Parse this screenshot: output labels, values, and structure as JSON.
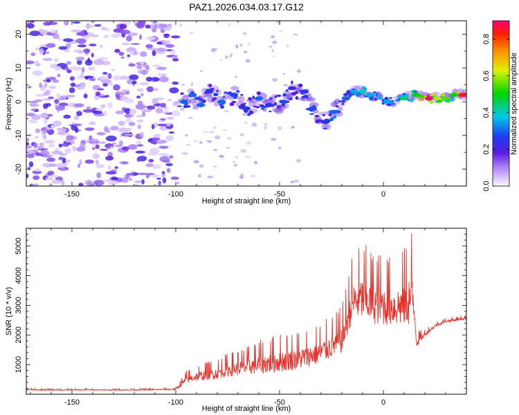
{
  "title": "PAZ1.2026.034.03.17.G12",
  "chart_data": [
    {
      "type": "heatmap",
      "title": "PAZ1.2026.034.03.17.G12",
      "xlabel": "Height of straight line (km)",
      "ylabel": "Frequency (Hz)",
      "xlim": [
        -172,
        40
      ],
      "ylim": [
        -25,
        24
      ],
      "x_ticks": [
        -150,
        -100,
        -50,
        0
      ],
      "y_ticks": [
        20,
        10,
        0,
        -10,
        -20
      ],
      "colorbar": {
        "label": "Normalized spectral amplitude",
        "range": [
          0.0,
          0.9
        ],
        "ticks": [
          "0.0",
          "0.2",
          "0.4",
          "0.6",
          "0.8"
        ]
      },
      "blobs": [
        {
          "x": -96,
          "f": 0,
          "a": 0.3
        },
        {
          "x": -92,
          "f": 2,
          "a": 0.3
        },
        {
          "x": -88,
          "f": -1,
          "a": 0.3
        },
        {
          "x": -84,
          "f": 3,
          "a": 0.25
        },
        {
          "x": -78,
          "f": 0,
          "a": 0.3
        },
        {
          "x": -72,
          "f": 2,
          "a": 0.28
        },
        {
          "x": -66,
          "f": -2,
          "a": 0.25
        },
        {
          "x": -60,
          "f": 1,
          "a": 0.3
        },
        {
          "x": -55,
          "f": -1,
          "a": 0.25
        },
        {
          "x": -48,
          "f": 0,
          "a": 0.28
        },
        {
          "x": -44,
          "f": 4,
          "a": 0.22
        },
        {
          "x": -38,
          "f": 3,
          "a": 0.25
        },
        {
          "x": -34,
          "f": -2,
          "a": 0.28
        },
        {
          "x": -28,
          "f": -6,
          "a": 0.25
        },
        {
          "x": -24,
          "f": -3,
          "a": 0.3
        },
        {
          "x": -18,
          "f": 1,
          "a": 0.3
        },
        {
          "x": -14,
          "f": 3,
          "a": 0.35
        },
        {
          "x": -10,
          "f": 3,
          "a": 0.4
        },
        {
          "x": -6,
          "f": 2,
          "a": 0.35
        },
        {
          "x": 2,
          "f": 0,
          "a": 0.35
        },
        {
          "x": 10,
          "f": 1,
          "a": 0.45
        },
        {
          "x": 16,
          "f": 2,
          "a": 0.5
        },
        {
          "x": 22,
          "f": 1,
          "a": 0.9
        },
        {
          "x": 26,
          "f": 1,
          "a": 0.6
        },
        {
          "x": 30,
          "f": 1,
          "a": 0.55
        },
        {
          "x": 34,
          "f": 2,
          "a": 0.5
        },
        {
          "x": 38,
          "f": 2,
          "a": 0.85
        }
      ]
    },
    {
      "type": "line",
      "xlabel": "Height of straight line (km)",
      "ylabel": "SNR (10 * v/v)",
      "xlim": [
        -172,
        40
      ],
      "ylim": [
        0,
        5600
      ],
      "x_ticks": [
        -150,
        -100,
        -50,
        0
      ],
      "y_ticks": [
        1000,
        2000,
        3000,
        4000,
        5000
      ],
      "series": [
        {
          "name": "SNR",
          "color": "#e8312a",
          "x": [
            -172,
            -160,
            -150,
            -140,
            -130,
            -120,
            -110,
            -100,
            -95,
            -90,
            -85,
            -80,
            -75,
            -70,
            -65,
            -60,
            -55,
            -50,
            -45,
            -40,
            -35,
            -30,
            -25,
            -20,
            -15,
            -10,
            -5,
            0,
            5,
            10,
            14,
            15,
            16,
            20,
            25,
            30,
            35,
            40
          ],
          "values": [
            150,
            140,
            140,
            145,
            140,
            140,
            150,
            160,
            450,
            550,
            600,
            650,
            750,
            800,
            850,
            900,
            950,
            1000,
            1050,
            1100,
            1200,
            1300,
            1500,
            1700,
            2900,
            3000,
            2850,
            2800,
            2750,
            2800,
            3000,
            2650,
            1700,
            2000,
            2300,
            2450,
            2500,
            2550
          ],
          "noise": [
            40,
            35,
            35,
            35,
            35,
            35,
            40,
            50,
            250,
            300,
            350,
            400,
            450,
            500,
            550,
            650,
            700,
            750,
            750,
            750,
            750,
            800,
            800,
            900,
            1300,
            1500,
            1400,
            1400,
            1300,
            1500,
            2000,
            600,
            300,
            150,
            100,
            90,
            90,
            90
          ]
        }
      ]
    }
  ]
}
